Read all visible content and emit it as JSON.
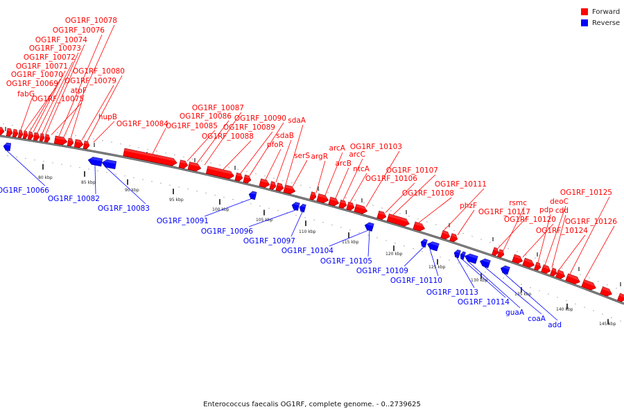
{
  "caption": "Enterococcus faecalis OG1RF, complete genome. - 0..2739625",
  "legend": {
    "forward_label": "Forward",
    "forward_color": "#ff0000",
    "reverse_label": "Reverse",
    "reverse_color": "#0000ff"
  },
  "tick_labels": [
    "80 kbp",
    "85 kbp",
    "90 kbp",
    "95 kbp",
    "100 kbp",
    "105 kbp",
    "110 kbp",
    "115 kbp",
    "120 kbp",
    "125 kbp",
    "130 kbp",
    "135 kbp",
    "140 kbp",
    "145 kbp"
  ],
  "forward_genes": [
    "fabG",
    "OG1RF_10069",
    "OG1RF_10070",
    "OG1RF_10071",
    "OG1RF_10072",
    "OG1RF_10073",
    "OG1RF_10074",
    "OG1RF_10075",
    "OG1RF_10076",
    "OG1RF_10078",
    "atpF",
    "OG1RF_10079",
    "OG1RF_10080",
    "hupB",
    "OG1RF_10084",
    "OG1RF_10085",
    "OG1RF_10086",
    "OG1RF_10087",
    "OG1RF_10088",
    "OG1RF_10089",
    "OG1RF_10090",
    "pfoR",
    "sdaB",
    "sdaA",
    "serS",
    "argR",
    "arcA",
    "arcB",
    "arcC",
    "ntcA",
    "OG1RF_10103",
    "OG1RF_10106",
    "OG1RF_10107",
    "OG1RF_10108",
    "OG1RF_10111",
    "phzF",
    "OG1RF_10117",
    "rsmc",
    "OG1RF_10120",
    "pdp",
    "deoC",
    "cdd",
    "OG1RF_10124",
    "OG1RF_10125",
    "OG1RF_10126"
  ],
  "reverse_genes": [
    "OG1RF_10066",
    "OG1RF_10082",
    "OG1RF_10083",
    "OG1RF_10091",
    "OG1RF_10096",
    "OG1RF_10097",
    "OG1RF_10104",
    "OG1RF_10105",
    "OG1RF_10109",
    "OG1RF_10110",
    "OG1RF_10113",
    "OG1RF_10114",
    "guaA",
    "coaA",
    "add"
  ]
}
